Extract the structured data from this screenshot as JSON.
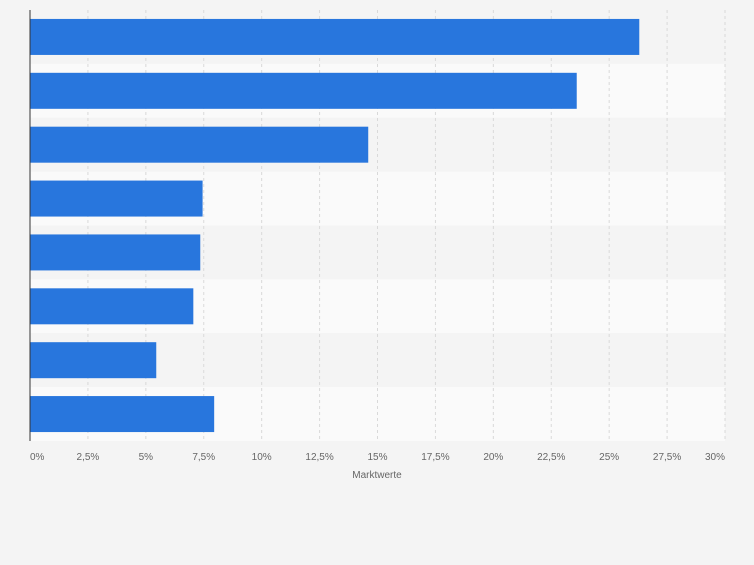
{
  "chart_data": {
    "type": "bar",
    "orientation": "horizontal",
    "categories": [
      "",
      "",
      "",
      "",
      "",
      "",
      "",
      ""
    ],
    "values": [
      26.3,
      23.6,
      14.6,
      7.45,
      7.35,
      7.05,
      5.45,
      7.95
    ],
    "title": "",
    "xlabel": "Marktwerte",
    "ylabel": "",
    "xlim": [
      0,
      30
    ],
    "x_ticks": [
      0,
      2.5,
      5,
      7.5,
      10,
      12.5,
      15,
      17.5,
      20,
      22.5,
      25,
      27.5,
      30
    ],
    "x_tick_labels": [
      "0%",
      "2,5%",
      "5%",
      "7,5%",
      "10%",
      "12,5%",
      "15%",
      "17,5%",
      "20%",
      "22,5%",
      "25%",
      "27,5%",
      "30%"
    ],
    "grid": "vertical dashed",
    "legend": "none",
    "bar_color": "#2876dd",
    "row_band_colors": [
      "#f4f4f4",
      "#fafafa"
    ],
    "gridline_color": "#d9d9d9",
    "axis_color": "#333333",
    "text_color": "#666666"
  }
}
